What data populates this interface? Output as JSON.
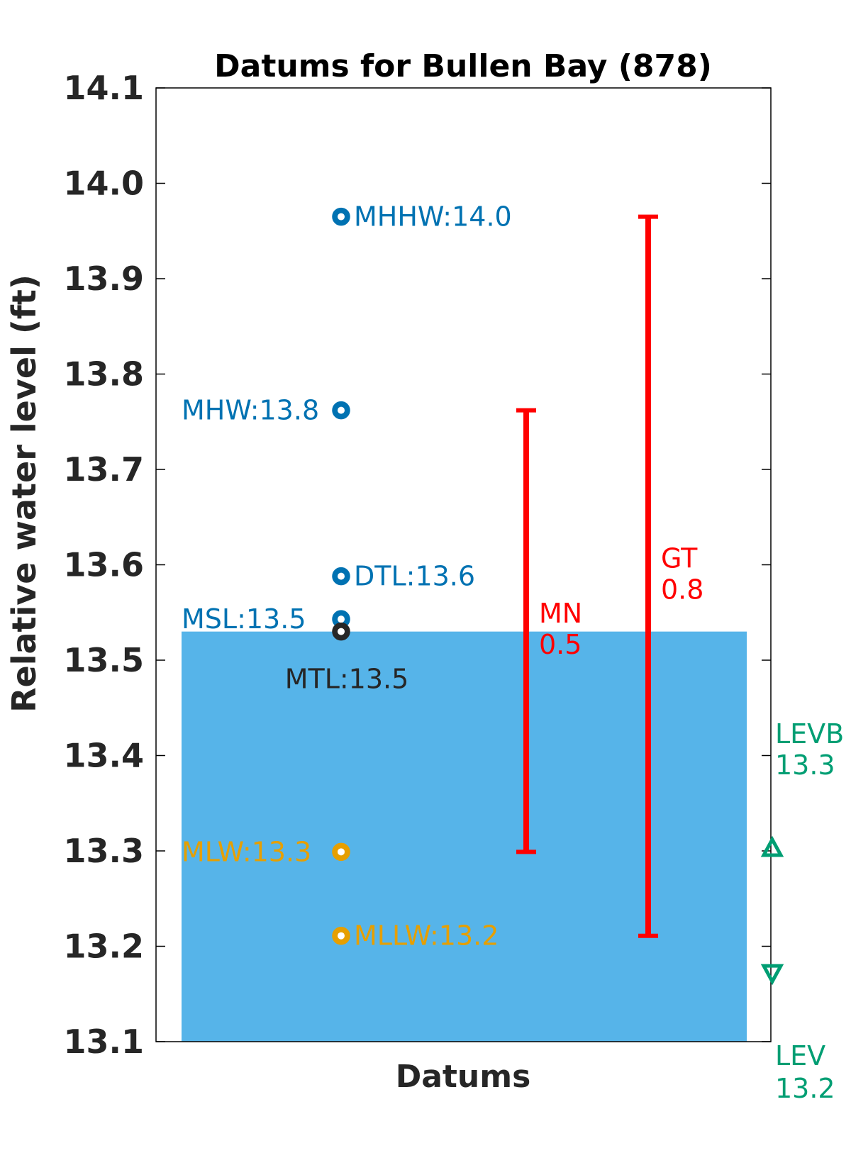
{
  "chart_data": {
    "type": "scatter",
    "title": "Datums for Bullen Bay (878)",
    "xlabel": "Datums",
    "ylabel": "Relative water level (ft)",
    "ylim": [
      13.1,
      14.1
    ],
    "yticks": [
      "13.1",
      "13.2",
      "13.3",
      "13.4",
      "13.5",
      "13.6",
      "13.7",
      "13.8",
      "13.9",
      "14.0",
      "14.1"
    ],
    "grid": false,
    "legend": "none",
    "water_fill": {
      "from": 13.1,
      "to": 13.53,
      "color": "#56b4e9"
    },
    "datums": [
      {
        "name": "MHHW",
        "value": 13.965,
        "label": "MHHW:14.0",
        "color": "#0072b2",
        "label_side": "right"
      },
      {
        "name": "MHW",
        "value": 13.762,
        "label": "MHW:13.8",
        "color": "#0072b2",
        "label_side": "left"
      },
      {
        "name": "DTL",
        "value": 13.588,
        "label": "DTL:13.6",
        "color": "#0072b2",
        "label_side": "right"
      },
      {
        "name": "MSL",
        "value": 13.543,
        "label": "MSL:13.5",
        "color": "#0072b2",
        "label_side": "left"
      },
      {
        "name": "MTL",
        "value": 13.53,
        "label": "MTL:13.5",
        "color": "#262626",
        "label_side": "below"
      },
      {
        "name": "MLW",
        "value": 13.299,
        "label": "MLW:13.3",
        "color": "#e69f00",
        "label_side": "left"
      },
      {
        "name": "MLLW",
        "value": 13.211,
        "label": "MLLW:13.2",
        "color": "#e69f00",
        "label_side": "right"
      }
    ],
    "ranges": [
      {
        "name": "MN",
        "from": 13.299,
        "to": 13.762,
        "label_line1": "MN",
        "label_line2": "0.5",
        "color": "#ff0000"
      },
      {
        "name": "GT",
        "from": 13.211,
        "to": 13.965,
        "label_line1": "GT",
        "label_line2": "0.8",
        "color": "#ff0000"
      }
    ],
    "extremes": [
      {
        "name": "LEVB",
        "value": 13.303,
        "marker": "triangle-up",
        "label_line1": "LEVB",
        "label_line2": "13.3",
        "color": "#009e73"
      },
      {
        "name": "LEV",
        "value": 13.172,
        "marker": "triangle-down",
        "label_line1": "LEV",
        "label_line2": "13.2",
        "color": "#009e73"
      }
    ]
  }
}
